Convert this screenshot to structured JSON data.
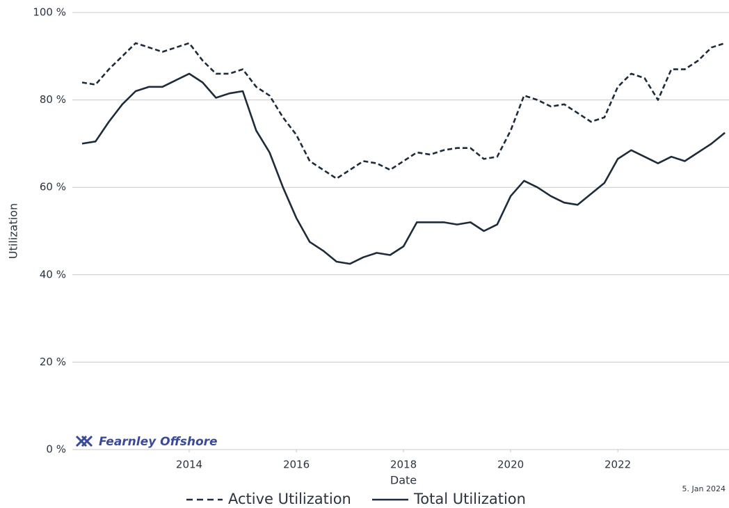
{
  "chart_data": {
    "type": "line",
    "y_label": "Utilization",
    "x_label": "Date",
    "annotation": "5. Jan 2024",
    "logo": "Fearnley Offshore",
    "x": [
      2012.0,
      2012.25,
      2012.5,
      2012.75,
      2013.0,
      2013.25,
      2013.5,
      2013.75,
      2014.0,
      2014.25,
      2014.5,
      2014.75,
      2015.0,
      2015.25,
      2015.5,
      2015.75,
      2016.0,
      2016.25,
      2016.5,
      2016.75,
      2017.0,
      2017.25,
      2017.5,
      2017.75,
      2018.0,
      2018.25,
      2018.5,
      2018.75,
      2019.0,
      2019.25,
      2019.5,
      2019.75,
      2020.0,
      2020.25,
      2020.5,
      2020.75,
      2021.0,
      2021.25,
      2021.5,
      2021.75,
      2022.0,
      2022.25,
      2022.5,
      2022.75,
      2023.0,
      2023.25,
      2023.5,
      2023.75,
      2024.0
    ],
    "series": [
      {
        "name": "Active Utilization",
        "color": "#1d2b3a",
        "dashed": true,
        "values": [
          84,
          83.5,
          87,
          90,
          93,
          92,
          91,
          92,
          93,
          89,
          86,
          86,
          87,
          83,
          81,
          76,
          72,
          66,
          64,
          62,
          64,
          66,
          65.5,
          64,
          66,
          68,
          67.5,
          68.5,
          69,
          69,
          66.5,
          67,
          73,
          81,
          80,
          78.5,
          79,
          77,
          75,
          76,
          83,
          86,
          85,
          80,
          87,
          87,
          89,
          92,
          93
        ]
      },
      {
        "name": "Total Utilization",
        "color": "#1d2b3a",
        "dashed": false,
        "values": [
          70,
          70.5,
          75,
          79,
          82,
          83,
          83,
          84.5,
          86,
          84,
          80.5,
          81.5,
          82,
          73,
          68,
          60,
          53,
          47.5,
          45.5,
          43,
          42.5,
          44,
          45,
          44.5,
          46.5,
          52,
          52,
          52,
          51.5,
          52,
          50,
          51.5,
          58,
          61.5,
          60,
          58,
          56.5,
          56,
          58.5,
          61,
          66.5,
          68.5,
          67,
          65.5,
          67,
          66,
          68,
          70,
          72.5
        ]
      }
    ],
    "xlim": [
      2012.0,
      2024.05
    ],
    "xticks": [
      2014,
      2016,
      2018,
      2020,
      2022
    ],
    "ylim": [
      0,
      100
    ],
    "yticks": [
      {
        "value": 0,
        "label": "0 %"
      },
      {
        "value": 20,
        "label": "20 %"
      },
      {
        "value": 40,
        "label": "40 %"
      },
      {
        "value": 60,
        "label": "60 %"
      },
      {
        "value": 80,
        "label": "80 %"
      },
      {
        "value": 100,
        "label": "100 %"
      }
    ],
    "grid": true,
    "legend": "bottom"
  }
}
